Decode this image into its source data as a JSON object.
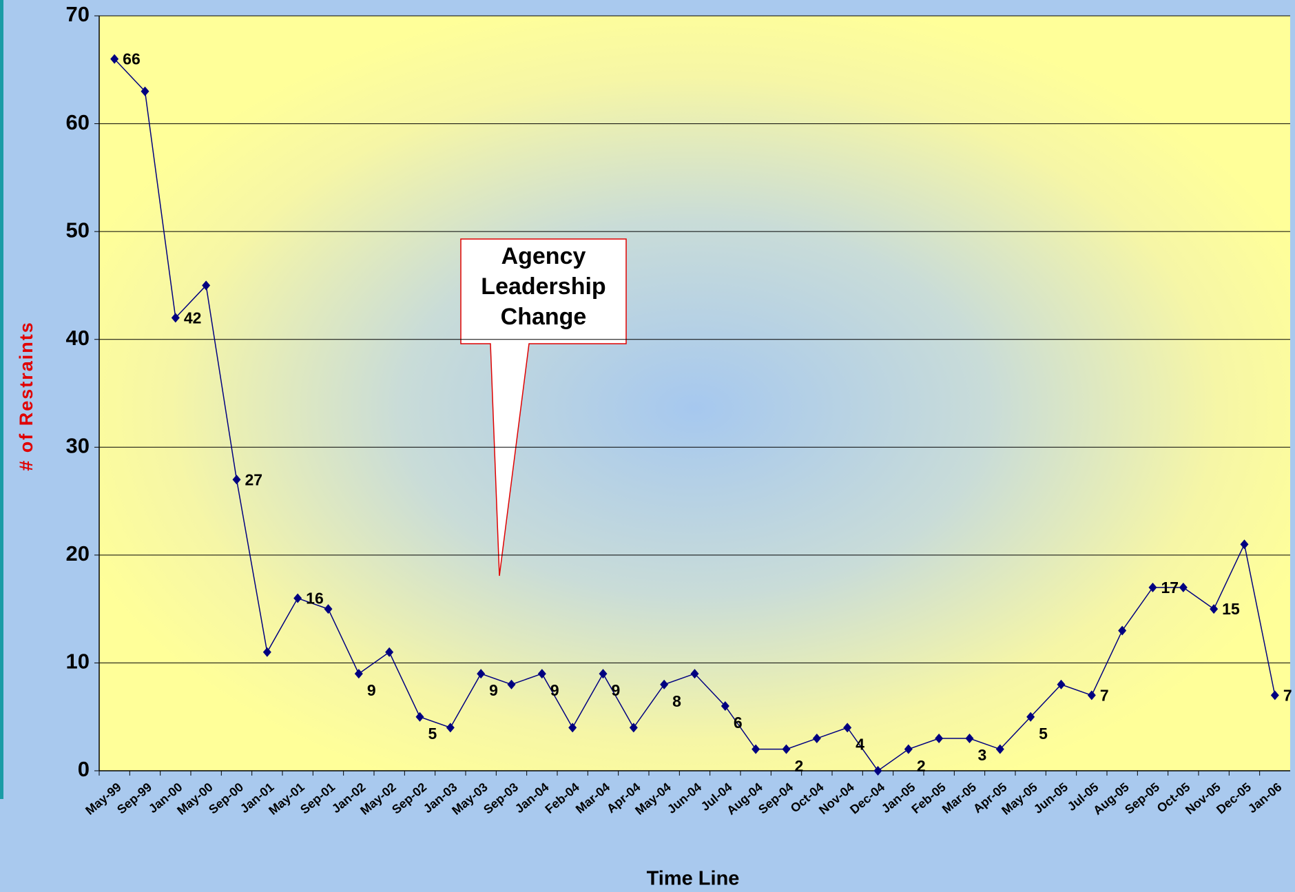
{
  "chart_data": {
    "type": "line",
    "y_label": "# of Restraints",
    "x_label": "Time Line",
    "annotation": "Agency Leadership Change",
    "categories": [
      "May-99",
      "Sep-99",
      "Jan-00",
      "May-00",
      "Sep-00",
      "Jan-01",
      "May-01",
      "Sep-01",
      "Jan-02",
      "May-02",
      "Sep-02",
      "Jan-03",
      "May-03",
      "Sep-03",
      "Jan-04",
      "Feb-04",
      "Mar-04",
      "Apr-04",
      "May-04",
      "Jun-04",
      "Jul-04",
      "Aug-04",
      "Sep-04",
      "Oct-04",
      "Nov-04",
      "Dec-04",
      "Jan-05",
      "Feb-05",
      "Mar-05",
      "Apr-05",
      "May-05",
      "Jun-05",
      "Jul-05",
      "Aug-05",
      "Sep-05",
      "Oct-05",
      "Nov-05",
      "Dec-05",
      "Jan-06"
    ],
    "series": [
      {
        "name": "Restraints",
        "color": "#000080",
        "values": [
          66,
          63,
          42,
          45,
          27,
          11,
          16,
          15,
          9,
          11,
          5,
          4,
          9,
          8,
          9,
          4,
          9,
          4,
          8,
          9,
          6,
          2,
          2,
          3,
          4,
          0,
          2,
          3,
          3,
          2,
          5,
          8,
          7,
          13,
          17,
          17,
          15,
          21,
          7
        ]
      }
    ],
    "ylim": [
      0,
      70
    ],
    "yticks": [
      0,
      10,
      20,
      30,
      40,
      50,
      60,
      70
    ],
    "grid": true
  }
}
